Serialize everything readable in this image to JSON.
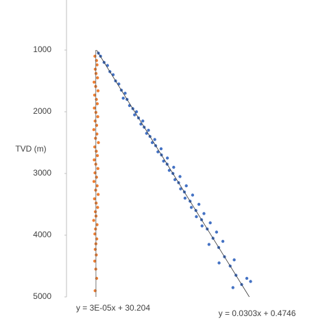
{
  "chart_data": {
    "type": "scatter",
    "y_label": "TVD (m)",
    "ylim": [
      200,
      5000
    ],
    "y_inverted": true,
    "yticks": [
      1000,
      2000,
      3000,
      4000,
      5000
    ],
    "xlim": [
      7,
      212
    ],
    "series": [
      {
        "color": "#ed7d31",
        "x": [
          29.5,
          30.8,
          31.2,
          29.8,
          30.4,
          31.6,
          28.9,
          30.1,
          32.0,
          29.3,
          30.7,
          31.4,
          29.1,
          30.3,
          31.8,
          29.7,
          30.9,
          28.7,
          31.1,
          30.0,
          32.3,
          29.4,
          30.6,
          31.5,
          29.0,
          30.2,
          31.9,
          29.6,
          30.8,
          28.8,
          31.3,
          30.1,
          32.1,
          29.2,
          30.5,
          31.7,
          29.9,
          30.4,
          28.6,
          31.2,
          30.0,
          29.5,
          31.0,
          30.3,
          29.8,
          30.6,
          29.4,
          30.2,
          30.9,
          29.7
        ],
        "y": [
          1100,
          1170,
          1240,
          1310,
          1380,
          1450,
          1520,
          1590,
          1660,
          1730,
          1800,
          1870,
          1940,
          2010,
          2080,
          2150,
          2220,
          2290,
          2360,
          2430,
          2500,
          2570,
          2640,
          2710,
          2780,
          2850,
          2920,
          2990,
          3060,
          3130,
          3200,
          3270,
          3340,
          3410,
          3480,
          3550,
          3620,
          3690,
          3760,
          3830,
          3900,
          3980,
          4060,
          4140,
          4230,
          4320,
          4420,
          4550,
          4700,
          4900
        ]
      },
      {
        "color": "#4472c4",
        "x": [
          32.3,
          34.0,
          36.8,
          39.5,
          41.4,
          44.0,
          45.9,
          48.5,
          50.5,
          53.5,
          55.0,
          52.0,
          59.6,
          62.5,
          57.0,
          64.1,
          67.5,
          61.0,
          68.6,
          72.0,
          66.0,
          73.2,
          77.0,
          70.5,
          77.7,
          82.0,
          75.0,
          82.3,
          87.0,
          79.5,
          86.8,
          92.0,
          84.0,
          91.4,
          97.0,
          88.5,
          95.9,
          102.0,
          93.0,
          100.5,
          107.0,
          97.5,
          105.0,
          112.0,
          101.0,
          109.6,
          116.0,
          106.0,
          114.1,
          121.0,
          110.0,
          118.6,
          126.0,
          114.5,
          123.2,
          131.0,
          127.7,
          120.0,
          132.3,
          140.0,
          136.8,
          128.0,
          141.4,
          150.0,
          145.9,
          139.0,
          153.0
        ],
        "y": [
          1050,
          1100,
          1200,
          1250,
          1350,
          1400,
          1500,
          1550,
          1650,
          1700,
          1800,
          1780,
          1950,
          2000,
          1900,
          2100,
          2150,
          2050,
          2250,
          2300,
          2200,
          2400,
          2450,
          2350,
          2550,
          2600,
          2500,
          2700,
          2750,
          2650,
          2850,
          2900,
          2800,
          3000,
          3050,
          2950,
          3150,
          3200,
          3100,
          3300,
          3350,
          3250,
          3450,
          3500,
          3400,
          3600,
          3650,
          3550,
          3750,
          3800,
          3700,
          3900,
          3950,
          3850,
          4050,
          4100,
          4200,
          4150,
          4350,
          4400,
          4500,
          4450,
          4650,
          4700,
          4800,
          4850,
          4750
        ]
      }
    ],
    "trendlines": [
      {
        "slope": 3e-05,
        "intercept": 30.204,
        "color": "#ed7d31",
        "label": "y = 3E-05x + 30.204"
      },
      {
        "slope": 0.0303,
        "intercept": 0.4746,
        "color": "#4472c4",
        "label": "y = 0.0303x + 0.4746"
      }
    ]
  }
}
